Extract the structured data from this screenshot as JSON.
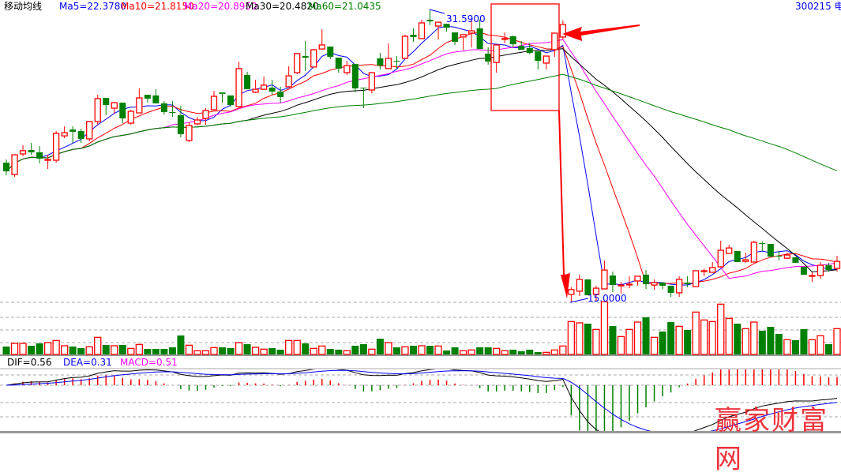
{
  "header": {
    "indicator_name": "移动均线",
    "ma5": "Ma5=22.3780",
    "ma10": "Ma10=21.8150",
    "ma20": "Ma20=20.8950",
    "ma30": "Ma30=20.4820",
    "ma60": "Ma60=21.0435",
    "stock": "300215 电"
  },
  "macd_header": {
    "dif": "DIF=0.56",
    "dea": "DEA=0.31",
    "macd": "MACD=0.51"
  },
  "watermark": "赢家财富网",
  "colors": {
    "up": "#ff0000",
    "down": "#008000",
    "ma5": "#0000ff",
    "ma10": "#ff0000",
    "ma20": "#ff00ff",
    "ma30": "#000000",
    "ma60": "#008000",
    "dif": "#000000",
    "dea": "#0000ff",
    "annotation": "#ff0000"
  },
  "chart_data": {
    "type": "candlestick",
    "price_range": [
      15.0,
      31.59
    ],
    "high_label": "31.5900",
    "low_label": "15.0000",
    "ma_periods": [
      5,
      10,
      20,
      30,
      60
    ],
    "macd_params": [
      12,
      26,
      9
    ],
    "volume_unit": "relative",
    "candles": [
      [
        22.91,
        23.09,
        22.2,
        22.42
      ],
      [
        22.24,
        23.36,
        22.11,
        23.36
      ],
      [
        23.41,
        23.9,
        23.27,
        23.59
      ],
      [
        23.63,
        24.03,
        23.36,
        23.5
      ],
      [
        23.5,
        23.85,
        22.87,
        23.14
      ],
      [
        23.05,
        23.36,
        22.56,
        23.09
      ],
      [
        23.05,
        24.7,
        22.91,
        24.57
      ],
      [
        24.43,
        24.97,
        24.3,
        24.61
      ],
      [
        24.79,
        24.97,
        24.03,
        24.66
      ],
      [
        24.7,
        24.84,
        24.03,
        24.26
      ],
      [
        24.26,
        25.28,
        24.12,
        25.24
      ],
      [
        25.24,
        26.76,
        25.06,
        26.54
      ],
      [
        26.58,
        26.58,
        25.6,
        26.18
      ],
      [
        26.0,
        26.36,
        25.69,
        26.31
      ],
      [
        26.31,
        26.31,
        25.15,
        25.42
      ],
      [
        25.15,
        25.91,
        25.06,
        25.82
      ],
      [
        25.73,
        27.12,
        25.73,
        26.58
      ],
      [
        26.76,
        26.76,
        26.31,
        26.54
      ],
      [
        26.72,
        27.08,
        26.27,
        26.27
      ],
      [
        26.27,
        26.4,
        25.64,
        25.78
      ],
      [
        25.78,
        26.4,
        25.51,
        25.73
      ],
      [
        25.6,
        26.12,
        24.35,
        24.53
      ],
      [
        24.17,
        25.2,
        24.08,
        25.02
      ],
      [
        25.11,
        25.51,
        25.02,
        25.33
      ],
      [
        25.42,
        26.0,
        25.06,
        25.87
      ],
      [
        25.91,
        26.98,
        25.91,
        26.67
      ],
      [
        26.89,
        26.89,
        26.31,
        26.81
      ],
      [
        26.72,
        26.72,
        26.09,
        26.18
      ],
      [
        26.09,
        28.64,
        26.09,
        28.24
      ],
      [
        27.88,
        28.06,
        27.07,
        27.07
      ],
      [
        26.9,
        27.61,
        26.85,
        27.07
      ],
      [
        27.07,
        27.79,
        27.03,
        27.3
      ],
      [
        27.16,
        27.61,
        26.72,
        26.94
      ],
      [
        26.94,
        27.21,
        26.31,
        26.63
      ],
      [
        27.21,
        28.37,
        27.21,
        27.83
      ],
      [
        28.01,
        29.13,
        27.92,
        29.09
      ],
      [
        28.95,
        29.8,
        28.1,
        28.86
      ],
      [
        28.33,
        29.35,
        28.33,
        29.31
      ],
      [
        29.35,
        30.47,
        29.35,
        29.58
      ],
      [
        29.49,
        29.49,
        28.77,
        28.91
      ],
      [
        28.86,
        28.86,
        28.01,
        28.24
      ],
      [
        28.01,
        28.68,
        27.88,
        28.41
      ],
      [
        28.5,
        28.5,
        26.89,
        27.12
      ],
      [
        27.16,
        27.16,
        26.0,
        27.14
      ],
      [
        27.03,
        28.01,
        26.85,
        28.01
      ],
      [
        28.82,
        29.13,
        28.19,
        28.41
      ],
      [
        28.24,
        29.67,
        28.24,
        28.82
      ],
      [
        28.68,
        28.95,
        28.19,
        28.66
      ],
      [
        28.82,
        30.16,
        28.82,
        30.07
      ],
      [
        30.16,
        30.52,
        29.76,
        30.03
      ],
      [
        29.94,
        31.01,
        29.94,
        30.83
      ],
      [
        31.01,
        31.59,
        30.7,
        30.92
      ],
      [
        30.65,
        30.87,
        29.89,
        30.87
      ],
      [
        30.78,
        30.78,
        30.34,
        30.56
      ],
      [
        30.29,
        30.29,
        29.58,
        29.76
      ],
      [
        30.03,
        30.16,
        29.29,
        30.16
      ],
      [
        30.25,
        31.01,
        29.44,
        30.38
      ],
      [
        30.52,
        31.01,
        29.35,
        29.35
      ],
      [
        29.09,
        29.44,
        28.46,
        28.64
      ],
      [
        28.59,
        29.58,
        28.01,
        29.58
      ],
      [
        29.94,
        30.29,
        29.67,
        29.94
      ],
      [
        30.07,
        30.12,
        29.44,
        29.62
      ],
      [
        29.53,
        29.8,
        29.31,
        29.31
      ],
      [
        29.4,
        29.67,
        29.04,
        29.13
      ],
      [
        29.22,
        29.22,
        28.19,
        28.68
      ],
      [
        28.55,
        28.95,
        28.19,
        28.95
      ],
      [
        29.31,
        30.25,
        28.91,
        30.25
      ],
      [
        30.03,
        30.96,
        29.89,
        30.74
      ],
      [
        15.45,
        15.85,
        15.0,
        15.72
      ],
      [
        15.63,
        16.57,
        15.36,
        16.3
      ],
      [
        16.3,
        16.3,
        15.4,
        15.4
      ],
      [
        15.45,
        15.94,
        15.04,
        15.8
      ],
      [
        15.76,
        17.37,
        15.76,
        16.83
      ],
      [
        16.52,
        16.74,
        15.58,
        15.98
      ],
      [
        15.98,
        16.16,
        15.49,
        15.98
      ],
      [
        16.03,
        16.48,
        15.8,
        16.03
      ],
      [
        16.21,
        16.48,
        15.94,
        16.48
      ],
      [
        16.57,
        16.83,
        15.76,
        16.03
      ],
      [
        15.98,
        16.3,
        15.71,
        16.12
      ],
      [
        16.12,
        16.12,
        15.76,
        15.94
      ],
      [
        15.94,
        15.94,
        15.31,
        15.54
      ],
      [
        15.54,
        16.48,
        15.31,
        16.3
      ],
      [
        16.12,
        16.48,
        15.85,
        16.03
      ],
      [
        15.89,
        16.79,
        15.89,
        16.79
      ],
      [
        16.79,
        16.92,
        16.48,
        16.79
      ],
      [
        16.7,
        17.28,
        16.7,
        16.97
      ],
      [
        17.01,
        18.49,
        17.01,
        17.95
      ],
      [
        17.77,
        18.26,
        17.77,
        18.08
      ],
      [
        17.91,
        17.91,
        17.28,
        17.28
      ],
      [
        17.32,
        17.81,
        17.24,
        17.41
      ],
      [
        17.28,
        18.49,
        17.28,
        18.4
      ],
      [
        18.35,
        18.44,
        17.91,
        18.33
      ],
      [
        18.31,
        18.31,
        17.59,
        17.59
      ],
      [
        17.64,
        17.91,
        17.37,
        17.62
      ],
      [
        17.5,
        17.82,
        17.46,
        17.68
      ],
      [
        17.55,
        17.55,
        17.24,
        17.24
      ],
      [
        17.01,
        17.01,
        16.56,
        16.56
      ],
      [
        16.52,
        16.7,
        16.16,
        16.52
      ],
      [
        16.52,
        17.28,
        16.34,
        17.1
      ],
      [
        17.1,
        17.24,
        16.74,
        16.83
      ],
      [
        16.92,
        17.64,
        16.74,
        17.32
      ]
    ],
    "volume": [
      30,
      42,
      42,
      33,
      42,
      45,
      53,
      33,
      30,
      24,
      29,
      65,
      36,
      33,
      36,
      23,
      38,
      21,
      21,
      21,
      27,
      72,
      35,
      14,
      14,
      26,
      27,
      24,
      45,
      39,
      27,
      20,
      24,
      18,
      53,
      53,
      42,
      23,
      32,
      21,
      18,
      14,
      33,
      39,
      20,
      60,
      45,
      27,
      29,
      33,
      33,
      33,
      32,
      15,
      27,
      14,
      17,
      27,
      27,
      23,
      14,
      18,
      12,
      18,
      9,
      8,
      17,
      32,
      125,
      120,
      117,
      95,
      200,
      108,
      68,
      95,
      123,
      141,
      65,
      87,
      123,
      107,
      93,
      161,
      131,
      125,
      191,
      137,
      117,
      98,
      123,
      90,
      105,
      78,
      56,
      54,
      96,
      56,
      71,
      39,
      98
    ]
  }
}
